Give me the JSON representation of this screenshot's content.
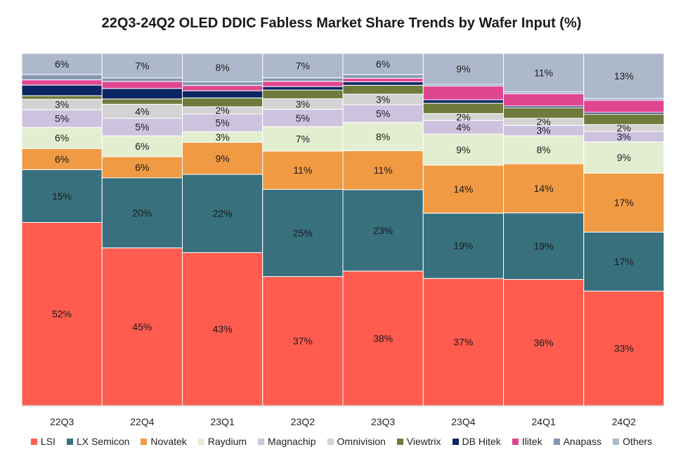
{
  "chart_data": {
    "type": "stacked-bar-100",
    "title": "22Q3-24Q2 OLED DDIC Fabless Market Share Trends by Wafer Input (%)",
    "categories": [
      "22Q3",
      "22Q4",
      "23Q1",
      "23Q2",
      "23Q3",
      "23Q4",
      "24Q1",
      "24Q2"
    ],
    "ylim": [
      0,
      100
    ],
    "legend_position": "bottom",
    "series": [
      {
        "name": "LSI",
        "color": "#FF5B4E",
        "values": [
          52,
          45,
          43,
          37,
          38,
          37,
          36,
          33
        ],
        "labels": [
          "52%",
          "45%",
          "43%",
          "37%",
          "38%",
          "37%",
          "36%",
          "33%"
        ]
      },
      {
        "name": "LX Semicon",
        "color": "#38707E",
        "values": [
          15,
          20,
          22,
          25,
          23,
          19,
          19,
          17
        ],
        "labels": [
          "15%",
          "20%",
          "22%",
          "25%",
          "23%",
          "19%",
          "19%",
          "17%"
        ]
      },
      {
        "name": "Novatek",
        "color": "#F09A43",
        "values": [
          6,
          6,
          9,
          11,
          11,
          14,
          14,
          17
        ],
        "labels": [
          "6%",
          "6%",
          "9%",
          "11%",
          "11%",
          "14%",
          "14%",
          "17%"
        ]
      },
      {
        "name": "Raydium",
        "color": "#E3EDD0",
        "values": [
          6,
          6,
          3,
          7,
          8,
          9,
          8,
          9
        ],
        "labels": [
          "6%",
          "6%",
          "3%",
          "7%",
          "8%",
          "9%",
          "8%",
          "9%"
        ]
      },
      {
        "name": "Magnachip",
        "color": "#CDC3DF",
        "values": [
          5,
          5,
          5,
          5,
          5,
          4,
          3,
          3
        ],
        "labels": [
          "5%",
          "5%",
          "5%",
          "5%",
          "5%",
          "4%",
          "3%",
          "3%"
        ]
      },
      {
        "name": "Omnivision",
        "color": "#D3D3D3",
        "values": [
          3,
          4,
          2,
          3,
          3,
          2,
          2,
          2
        ],
        "labels": [
          "3%",
          "4%",
          "2%",
          "3%",
          "3%",
          "2%",
          "2%",
          "2%"
        ]
      },
      {
        "name": "Viewtrix",
        "color": "#6E7B3C",
        "values": [
          1,
          1.5,
          2.5,
          2.5,
          2.5,
          3,
          3,
          3
        ],
        "labels": [
          "",
          "",
          "",
          "",
          "",
          "",
          "",
          ""
        ]
      },
      {
        "name": "DB Hitek",
        "color": "#0B2463",
        "values": [
          3,
          3,
          2,
          1,
          1,
          1,
          0.5,
          0.5
        ],
        "labels": [
          "",
          "",
          "",
          "",
          "",
          "",
          "",
          ""
        ]
      },
      {
        "name": "Ilitek",
        "color": "#E0468F",
        "values": [
          1.5,
          2,
          1.5,
          1.5,
          1,
          4,
          3.5,
          3.5
        ],
        "labels": [
          "",
          "",
          "",
          "",
          "",
          "",
          "",
          ""
        ]
      },
      {
        "name": "Anapass",
        "color": "#8497B0",
        "values": [
          1.5,
          1,
          1,
          1,
          1,
          0.5,
          0.5,
          0.5
        ],
        "labels": [
          "",
          "",
          "",
          "",
          "",
          "",
          "",
          ""
        ]
      },
      {
        "name": "Others",
        "color": "#ADB9CA",
        "values": [
          6,
          7,
          8,
          7,
          6,
          9,
          11,
          13
        ],
        "labels": [
          "6%",
          "7%",
          "8%",
          "7%",
          "6%",
          "9%",
          "11%",
          "13%"
        ]
      }
    ]
  }
}
